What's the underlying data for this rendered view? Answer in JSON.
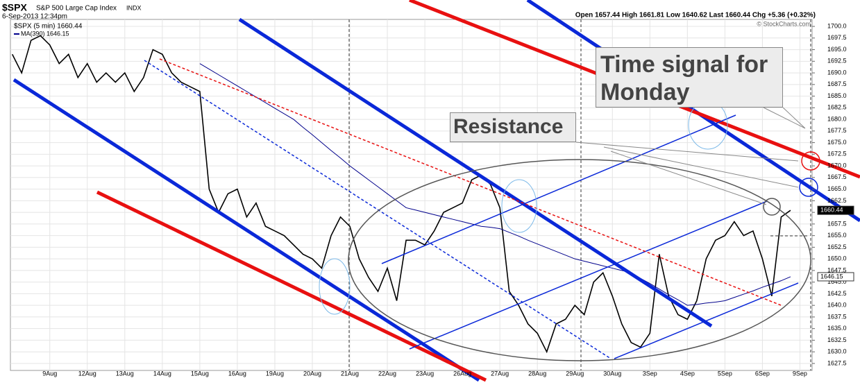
{
  "header": {
    "symbol": "$SPX",
    "name": "S&P 500 Large Cap Index",
    "exchange": "INDX",
    "datetime": "6-Sep-2013 12:34pm",
    "quote": "Open 1657.44 High 1661.81 Low 1640.62 Last 1660.44 Chg +5.36 (+0.32%)",
    "copyright": "© StockCharts.com"
  },
  "annotations": {
    "time_signal": "Time signal for Monday",
    "resistance": "Resistance"
  },
  "chart_data": {
    "type": "line",
    "series": [
      {
        "name": "$SPX (5 min) 1660.44",
        "color": "#000000",
        "last_label": "1660.44",
        "values": [
          1694,
          1690,
          1697,
          1698,
          1696,
          1692,
          1694,
          1689,
          1692,
          1688,
          1690,
          1688,
          1690,
          1686,
          1689,
          1695,
          1694,
          1690,
          1688,
          1687,
          1686,
          1665,
          1660,
          1664,
          1665,
          1659,
          1662,
          1657,
          1656,
          1655,
          1653,
          1651,
          1650,
          1648,
          1655,
          1659,
          1657,
          1650,
          1646,
          1643,
          1648,
          1641,
          1654,
          1654,
          1653,
          1656,
          1660,
          1661,
          1662,
          1667,
          1668,
          1666,
          1661,
          1643,
          1640,
          1636,
          1634,
          1630,
          1636,
          1637,
          1640,
          1638,
          1645,
          1647,
          1642,
          1636,
          1632,
          1631,
          1634,
          1651,
          1642,
          1638,
          1637,
          1641,
          1650,
          1654,
          1655,
          1658,
          1655,
          1656,
          1650,
          1642,
          1659,
          1660.44
        ]
      },
      {
        "name": "MA(390) 1646.15",
        "color": "#00008b",
        "last_label": "1646.15",
        "values": [
          null,
          null,
          null,
          null,
          null,
          null,
          null,
          null,
          null,
          null,
          null,
          null,
          null,
          null,
          null,
          null,
          null,
          null,
          null,
          null,
          1692,
          1690.8,
          1689.6,
          1688.4,
          1687.2,
          1686,
          1684.8,
          1683.6,
          1682.4,
          1681.2,
          1680,
          1678.3,
          1676.7,
          1675,
          1673.3,
          1671.7,
          1670,
          1668.5,
          1667,
          1665.5,
          1664,
          1662.5,
          1661,
          1660.5,
          1660,
          1659.5,
          1659,
          1658.5,
          1658,
          1657.5,
          1657,
          1656.8,
          1656.5,
          1655.7,
          1654.9,
          1654,
          1653.2,
          1652.4,
          1651.6,
          1650.8,
          1650,
          1649.5,
          1649,
          1648.5,
          1648,
          1647.5,
          1647,
          1645.8,
          1644.7,
          1643.5,
          1642.3,
          1641.2,
          1640,
          1640.2,
          1640.5,
          1640.7,
          1641,
          1641.7,
          1642.4,
          1643.1,
          1643.9,
          1644.6,
          1645.3,
          1646.15
        ]
      }
    ],
    "ylim": [
      1626,
      1701.5
    ],
    "yticks": [
      1627.5,
      {
        "value": 1630,
        "label": "1630.0"
      },
      1632.5,
      {
        "value": 1635,
        "label": "1635.0"
      },
      1637.5,
      {
        "value": 1640,
        "label": "1640.0"
      },
      1642.5,
      {
        "value": 1645,
        "label": "1645.0"
      },
      1647.5,
      {
        "value": 1650,
        "label": "1650.0"
      },
      1652.5,
      {
        "value": 1655,
        "label": "1655.0"
      },
      1657.5,
      {
        "value": 1660,
        "label": "1660.0"
      },
      1662.5,
      {
        "value": 1665,
        "label": "1665.0"
      },
      1667.5,
      {
        "value": 1670,
        "label": "1670.0"
      },
      1672.5,
      {
        "value": 1675,
        "label": "1675.0"
      },
      1677.5,
      {
        "value": 1680,
        "label": "1680.0"
      },
      1682.5,
      {
        "value": 1685,
        "label": "1685.0"
      },
      1687.5,
      {
        "value": 1690,
        "label": "1690.0"
      },
      1692.5,
      {
        "value": 1695,
        "label": "1695.0"
      },
      1697.5,
      {
        "value": 1700,
        "label": "1700.0"
      }
    ],
    "xlim": [
      -0.2,
      85.3
    ],
    "xticks": [
      {
        "value": 4,
        "label": "9Aug"
      },
      {
        "value": 8,
        "label": "12Aug"
      },
      {
        "value": 12,
        "label": "13Aug"
      },
      {
        "value": 16,
        "label": "14Aug"
      },
      {
        "value": 20,
        "label": "15Aug"
      },
      {
        "value": 24,
        "label": "16Aug"
      },
      {
        "value": 28,
        "label": "19Aug"
      },
      {
        "value": 32,
        "label": "20Aug"
      },
      {
        "value": 36,
        "label": "21Aug"
      },
      {
        "value": 40,
        "label": "22Aug"
      },
      {
        "value": 44,
        "label": "23Aug"
      },
      {
        "value": 48,
        "label": "26Aug"
      },
      {
        "value": 52,
        "label": "27Aug"
      },
      {
        "value": 56,
        "label": "28Aug"
      },
      {
        "value": 60,
        "label": "29Aug"
      },
      {
        "value": 64,
        "label": "30Aug"
      },
      {
        "value": 68,
        "label": "3Sep"
      },
      {
        "value": 72,
        "label": "4Sep"
      },
      {
        "value": 76,
        "label": "5Sep"
      },
      {
        "value": 80,
        "label": "6Sep"
      },
      {
        "value": 84,
        "label": "9Sep"
      }
    ],
    "grid": true
  }
}
